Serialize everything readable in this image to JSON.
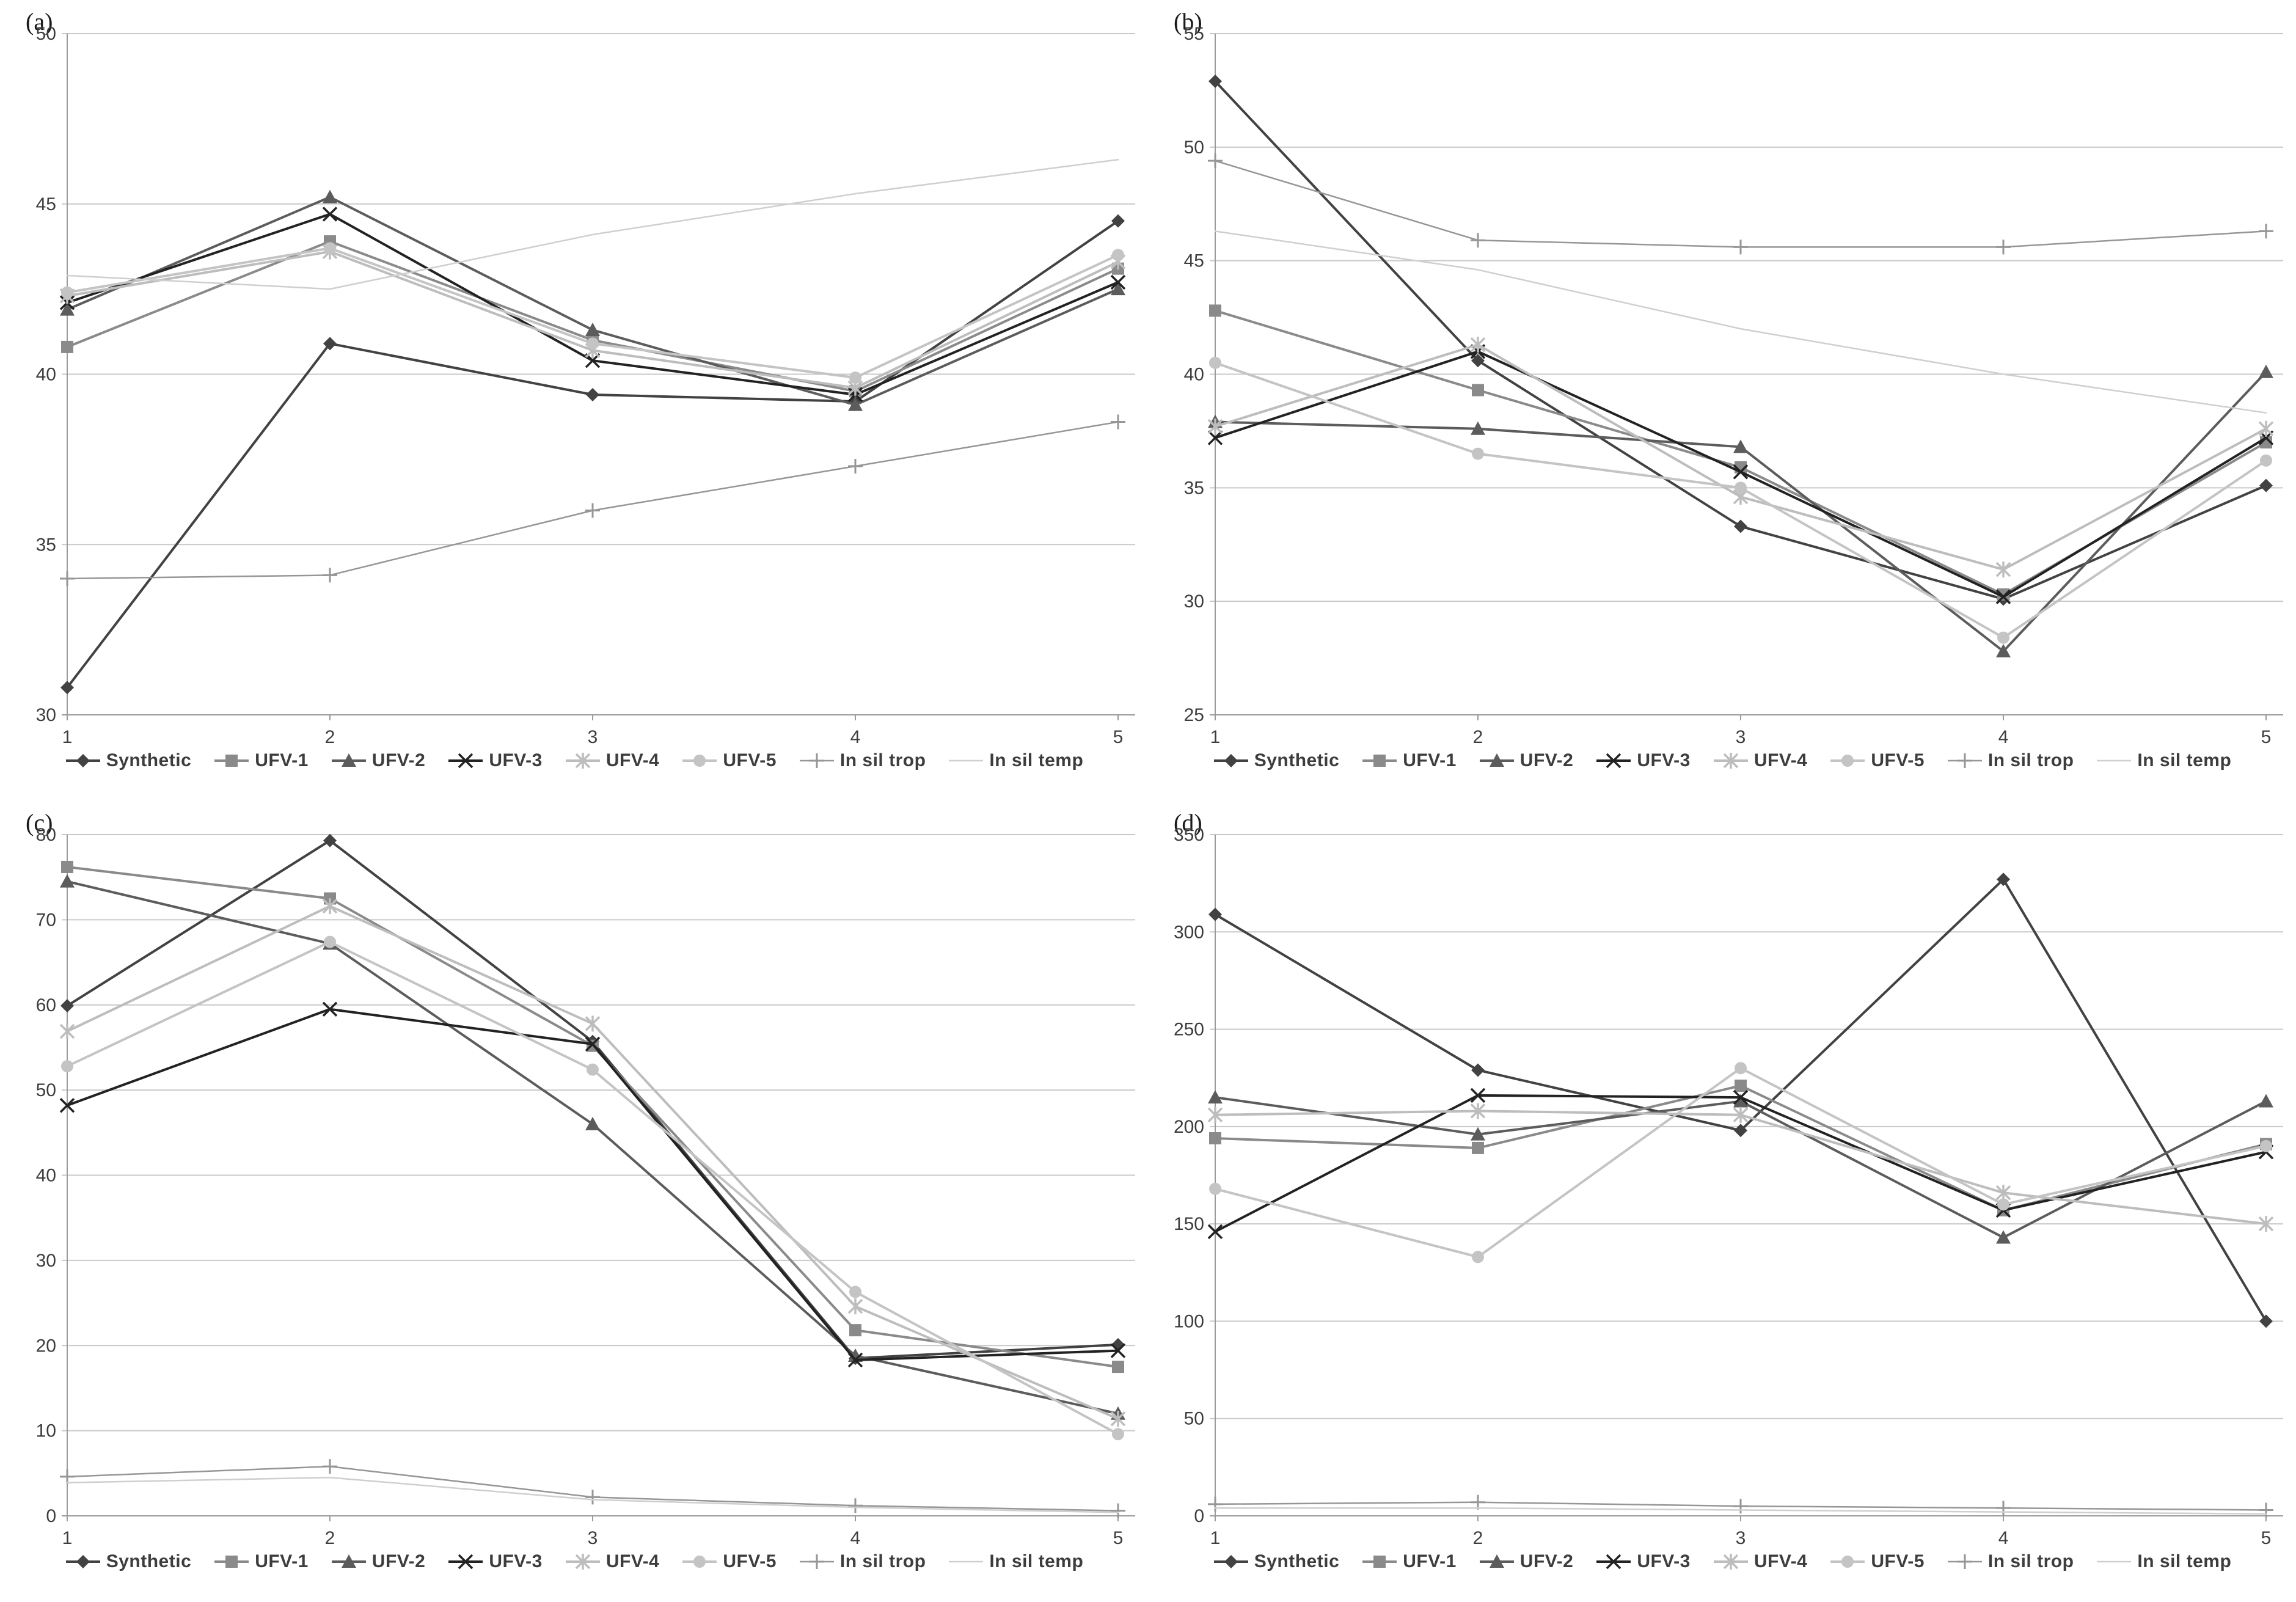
{
  "figure": {
    "background": "#ffffff",
    "gridline_color": "#c9c9c9",
    "axis_color": "#9b9b9b",
    "tick_label_color": "#3d3d3d",
    "legend_text_color": "#3d3d3d"
  },
  "series_styles": [
    {
      "name": "Synthetic",
      "marker": "diamond",
      "color": "#424242",
      "width": 4
    },
    {
      "name": "UFV-1",
      "marker": "square",
      "color": "#8a8a8a",
      "width": 4
    },
    {
      "name": "UFV-2",
      "marker": "triangle",
      "color": "#5c5c5c",
      "width": 4
    },
    {
      "name": "UFV-3",
      "marker": "x",
      "color": "#222222",
      "width": 4
    },
    {
      "name": "UFV-4",
      "marker": "asterisk",
      "color": "#bdbdbd",
      "width": 4
    },
    {
      "name": "UFV-5",
      "marker": "circle",
      "color": "#c4c4c4",
      "width": 4
    },
    {
      "name": "In sil trop",
      "marker": "plus",
      "color": "#969696",
      "width": 2.5
    },
    {
      "name": "In sil temp",
      "marker": "none",
      "color": "#cfcfcf",
      "width": 2.5
    }
  ],
  "chart_data": [
    {
      "type": "line",
      "panel_label": "(a)",
      "x": [
        1,
        2,
        3,
        4,
        5
      ],
      "ylim": [
        30,
        50
      ],
      "yticks": [
        30,
        35,
        40,
        45,
        50
      ],
      "grid": true,
      "legend_position": "bottom",
      "series": [
        {
          "name": "Synthetic",
          "values": [
            30.8,
            40.9,
            39.4,
            39.2,
            44.5
          ]
        },
        {
          "name": "UFV-1",
          "values": [
            40.8,
            43.9,
            41.0,
            39.5,
            43.1
          ]
        },
        {
          "name": "UFV-2",
          "values": [
            41.9,
            45.2,
            41.3,
            39.1,
            42.5
          ]
        },
        {
          "name": "UFV-3",
          "values": [
            42.1,
            44.7,
            40.4,
            39.4,
            42.7
          ]
        },
        {
          "name": "UFV-4",
          "values": [
            42.3,
            43.6,
            40.7,
            39.6,
            43.3
          ]
        },
        {
          "name": "UFV-5",
          "values": [
            42.4,
            43.7,
            40.9,
            39.9,
            43.5
          ]
        },
        {
          "name": "In sil trop",
          "values": [
            34.0,
            34.1,
            36.0,
            37.3,
            38.6
          ]
        },
        {
          "name": "In sil temp",
          "values": [
            42.9,
            42.5,
            44.1,
            45.3,
            46.3
          ]
        }
      ]
    },
    {
      "type": "line",
      "panel_label": "(b)",
      "x": [
        1,
        2,
        3,
        4,
        5
      ],
      "ylim": [
        25,
        55
      ],
      "yticks": [
        25,
        30,
        35,
        40,
        45,
        50,
        55
      ],
      "grid": true,
      "legend_position": "bottom",
      "series": [
        {
          "name": "Synthetic",
          "values": [
            52.9,
            40.6,
            33.3,
            30.1,
            35.1
          ]
        },
        {
          "name": "UFV-1",
          "values": [
            42.8,
            39.3,
            35.9,
            30.3,
            37.0
          ]
        },
        {
          "name": "UFV-2",
          "values": [
            37.9,
            37.6,
            36.8,
            27.8,
            40.1
          ]
        },
        {
          "name": "UFV-3",
          "values": [
            37.2,
            41.0,
            35.7,
            30.2,
            37.2
          ]
        },
        {
          "name": "UFV-4",
          "values": [
            37.7,
            41.3,
            34.6,
            31.4,
            37.6
          ]
        },
        {
          "name": "UFV-5",
          "values": [
            40.5,
            36.5,
            35.0,
            28.4,
            36.2
          ]
        },
        {
          "name": "In sil trop",
          "values": [
            49.4,
            45.9,
            45.6,
            45.6,
            46.3
          ]
        },
        {
          "name": "In sil temp",
          "values": [
            46.3,
            44.6,
            42.0,
            40.0,
            38.3
          ]
        }
      ]
    },
    {
      "type": "line",
      "panel_label": "(c)",
      "x": [
        1,
        2,
        3,
        4,
        5
      ],
      "ylim": [
        0,
        80
      ],
      "yticks": [
        0,
        10,
        20,
        30,
        40,
        50,
        60,
        70,
        80
      ],
      "grid": true,
      "legend_position": "bottom",
      "series": [
        {
          "name": "Synthetic",
          "values": [
            59.9,
            79.3,
            55.7,
            18.5,
            20.1
          ]
        },
        {
          "name": "UFV-1",
          "values": [
            76.2,
            72.5,
            55.2,
            21.8,
            17.5
          ]
        },
        {
          "name": "UFV-2",
          "values": [
            74.5,
            67.2,
            46.0,
            18.8,
            12.0
          ]
        },
        {
          "name": "UFV-3",
          "values": [
            48.2,
            59.5,
            55.4,
            18.3,
            19.4
          ]
        },
        {
          "name": "UFV-4",
          "values": [
            56.9,
            71.6,
            57.8,
            24.6,
            11.4
          ]
        },
        {
          "name": "UFV-5",
          "values": [
            52.8,
            67.4,
            52.4,
            26.3,
            9.6
          ]
        },
        {
          "name": "In sil trop",
          "values": [
            4.6,
            5.8,
            2.2,
            1.2,
            0.6
          ]
        },
        {
          "name": "In sil temp",
          "values": [
            3.9,
            4.5,
            1.9,
            1.0,
            0.4
          ]
        }
      ]
    },
    {
      "type": "line",
      "panel_label": "(d)",
      "x": [
        1,
        2,
        3,
        4,
        5
      ],
      "ylim": [
        0,
        350
      ],
      "yticks": [
        0,
        50,
        100,
        150,
        200,
        250,
        300,
        350
      ],
      "grid": true,
      "legend_position": "bottom",
      "series": [
        {
          "name": "Synthetic",
          "values": [
            309,
            229,
            198,
            327,
            100
          ]
        },
        {
          "name": "UFV-1",
          "values": [
            194,
            189,
            221,
            157,
            191
          ]
        },
        {
          "name": "UFV-2",
          "values": [
            215,
            196,
            213,
            143,
            213
          ]
        },
        {
          "name": "UFV-3",
          "values": [
            146,
            216,
            215,
            157,
            187
          ]
        },
        {
          "name": "UFV-4",
          "values": [
            206,
            208,
            206,
            166,
            150
          ]
        },
        {
          "name": "UFV-5",
          "values": [
            168,
            133,
            230,
            160,
            190
          ]
        },
        {
          "name": "In sil trop",
          "values": [
            6,
            7,
            5,
            4,
            3
          ]
        },
        {
          "name": "In sil temp",
          "values": [
            4,
            4,
            3,
            2,
            1
          ]
        }
      ]
    }
  ]
}
